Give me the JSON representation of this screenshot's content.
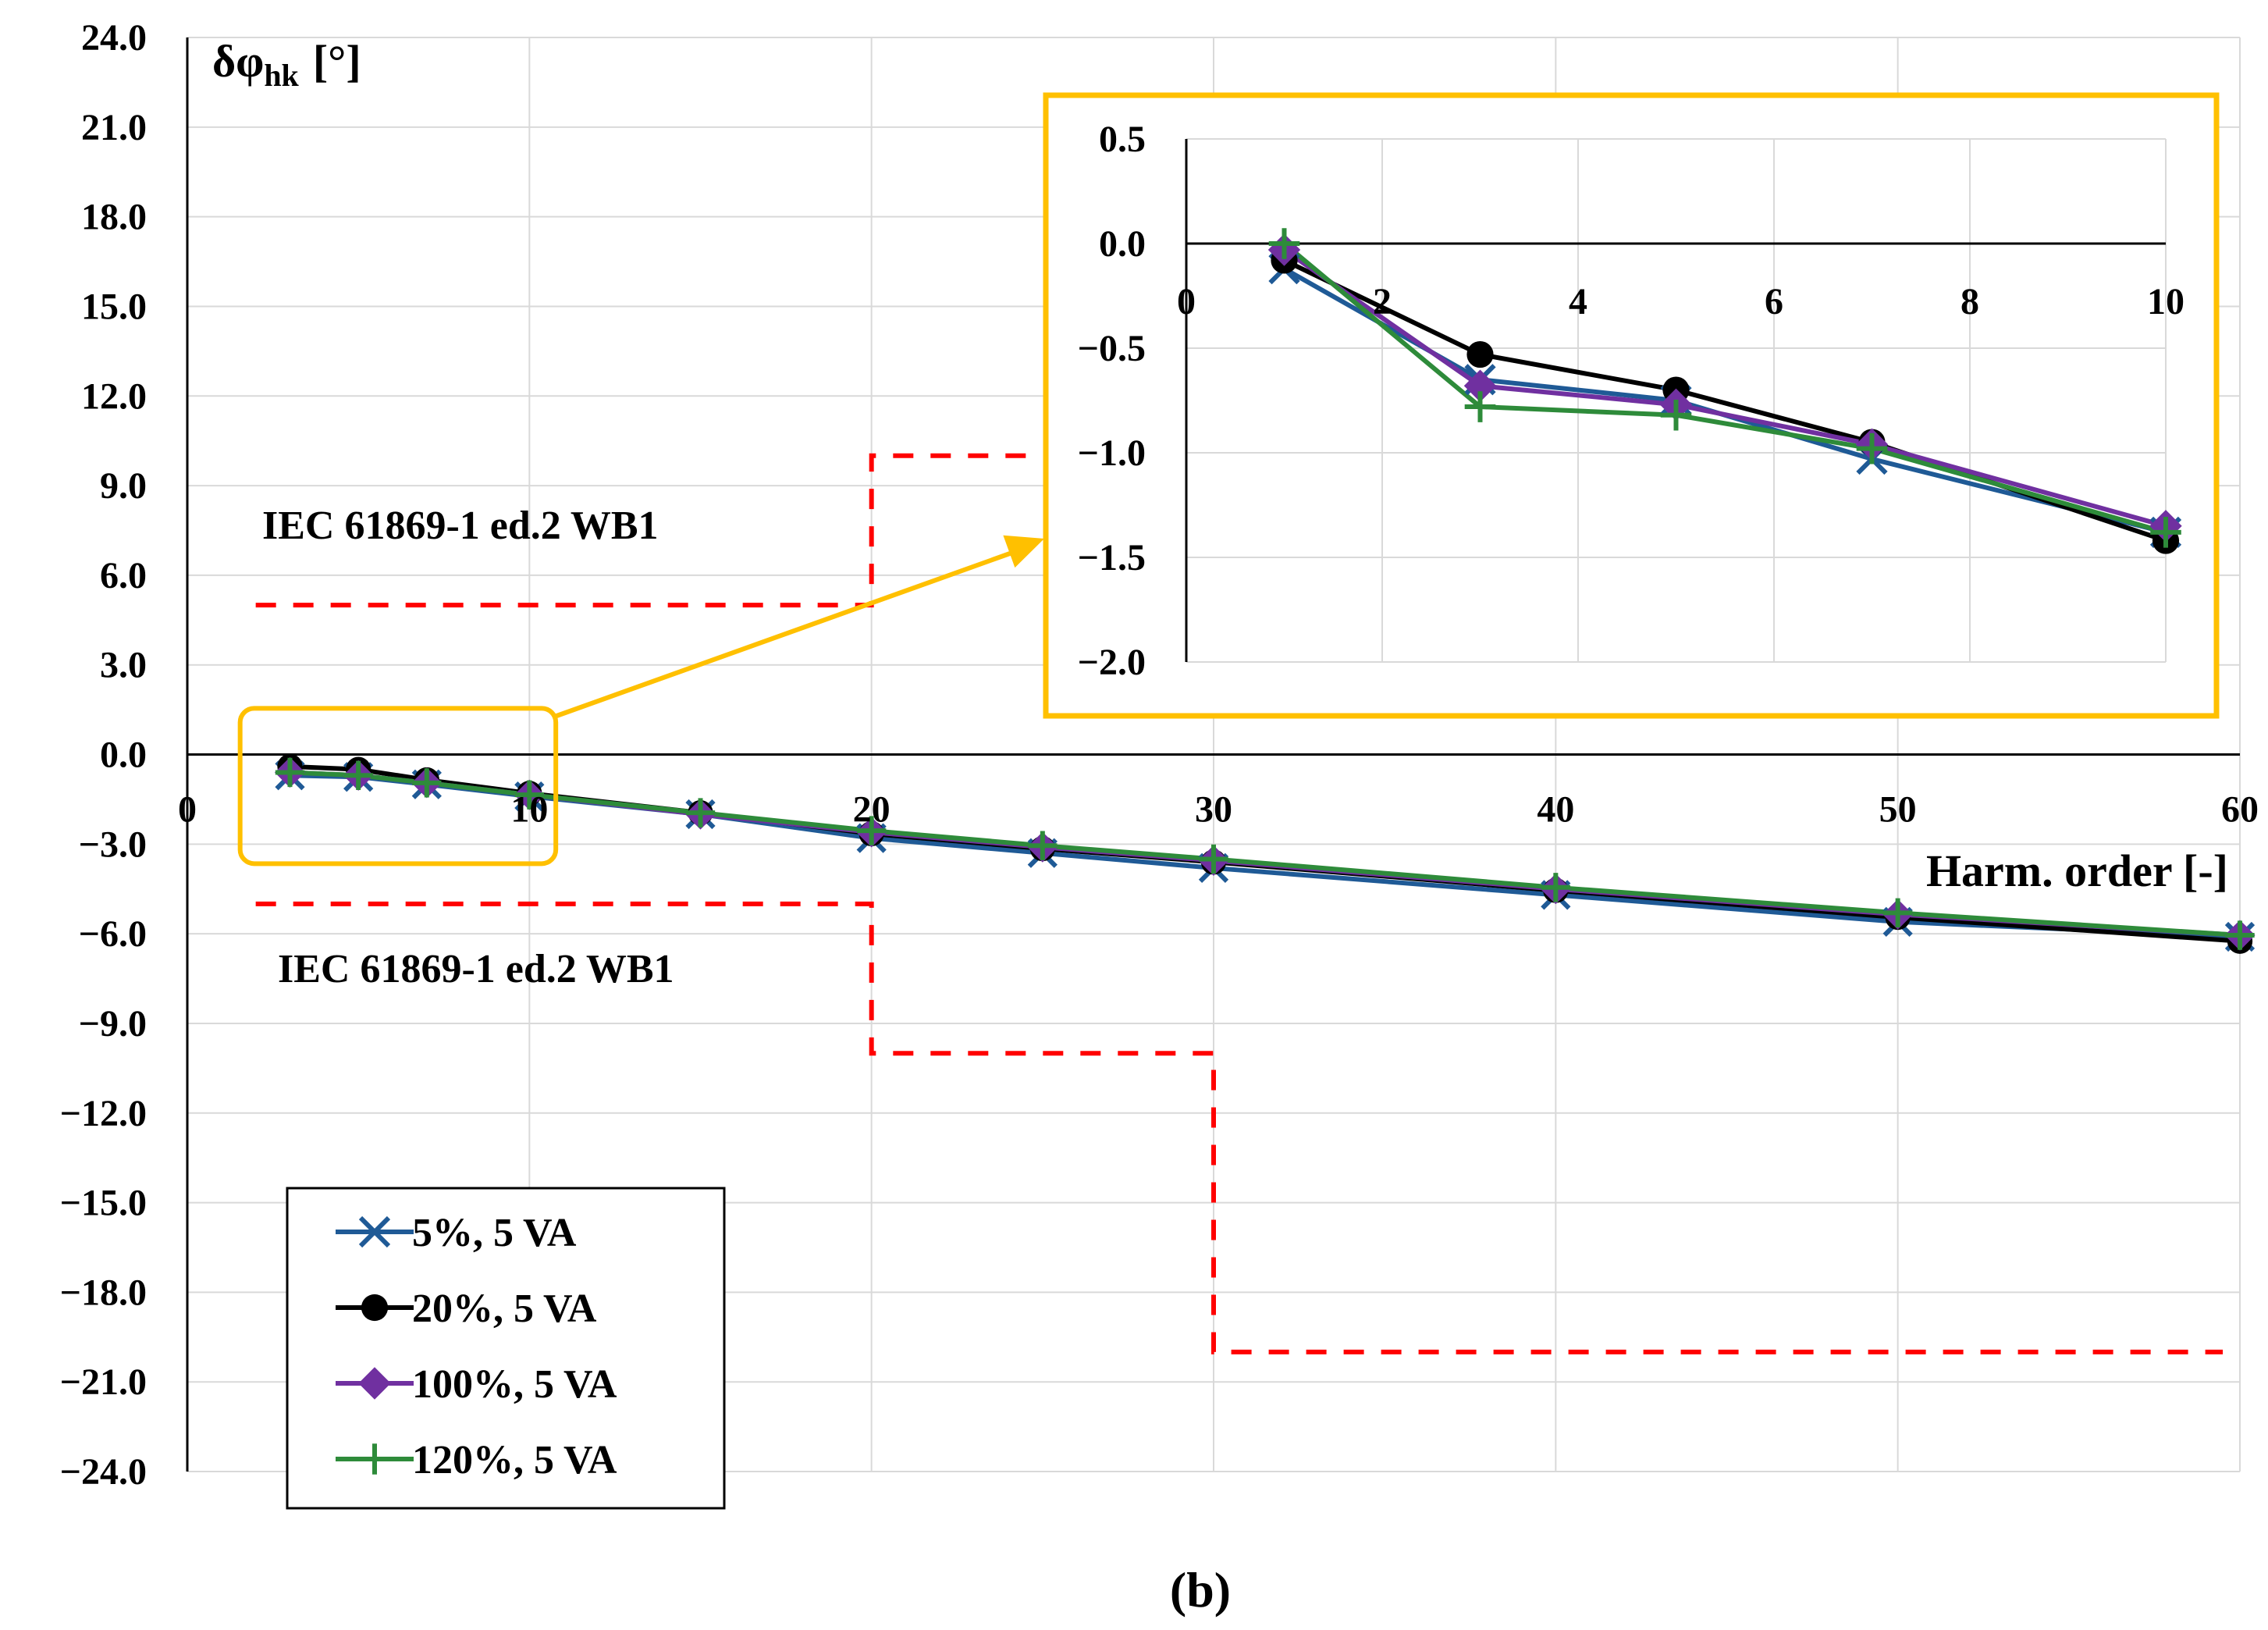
{
  "caption": "(b)",
  "colors": {
    "s5": "#1f5a96",
    "s20": "#000000",
    "s100": "#7030a0",
    "s120": "#2e8b3a",
    "limit": "#ff0000",
    "highlight": "#ffc000",
    "grid": "#d9d9d9"
  },
  "chart_data": [
    {
      "name": "main",
      "type": "line",
      "ylabel_main": "δφ",
      "ylabel_sub": "hk",
      "ylabel_unit": "[°]",
      "xlabel": "Harm. order [-]",
      "xlim": [
        0,
        60
      ],
      "ylim": [
        -24,
        24
      ],
      "xticks": [
        0,
        10,
        20,
        30,
        40,
        50,
        60
      ],
      "xtick_labels": [
        "0",
        "10",
        "20",
        "30",
        "40",
        "50",
        "60"
      ],
      "yticks": [
        24,
        21,
        18,
        15,
        12,
        9,
        6,
        3,
        0,
        -3,
        -6,
        -9,
        -12,
        -15,
        -18,
        -21,
        -24
      ],
      "ytick_labels": [
        "24.0",
        "21.0",
        "18.0",
        "15.0",
        "12.0",
        "9.0",
        "6.0",
        "3.0",
        "0.0",
        "−3.0",
        "−6.0",
        "−9.0",
        "−12.0",
        "−15.0",
        "−18.0",
        "−21.0",
        "−24.0"
      ],
      "x": [
        3,
        5,
        7,
        10,
        15,
        20,
        25,
        30,
        40,
        50,
        60
      ],
      "series": [
        {
          "name": "5%, 5 VA",
          "color_key": "s5",
          "marker": "x",
          "values": [
            -0.7,
            -0.75,
            -1.0,
            -1.4,
            -2.0,
            -2.8,
            -3.3,
            -3.8,
            -4.7,
            -5.6,
            -6.1
          ]
        },
        {
          "name": "20%, 5 VA",
          "color_key": "s20",
          "marker": "circle",
          "values": [
            -0.4,
            -0.5,
            -0.85,
            -1.3,
            -1.95,
            -2.65,
            -3.15,
            -3.6,
            -4.55,
            -5.45,
            -6.25
          ]
        },
        {
          "name": "100%, 5 VA",
          "color_key": "s100",
          "marker": "diamond",
          "values": [
            -0.6,
            -0.7,
            -0.95,
            -1.35,
            -2.0,
            -2.6,
            -3.1,
            -3.55,
            -4.5,
            -5.35,
            -6.05
          ]
        },
        {
          "name": "120%, 5 VA",
          "color_key": "s120",
          "marker": "plus",
          "values": [
            -0.6,
            -0.7,
            -0.95,
            -1.35,
            -1.95,
            -2.55,
            -3.05,
            -3.5,
            -4.45,
            -5.3,
            -6.05
          ]
        }
      ],
      "limits": {
        "label": "IEC 61869-1 ed.2 WB1",
        "upper": [
          [
            2,
            5
          ],
          [
            20,
            5
          ],
          [
            20,
            10
          ],
          [
            25,
            10
          ]
        ],
        "lower": [
          [
            2,
            -5
          ],
          [
            20,
            -5
          ],
          [
            20,
            -10
          ],
          [
            30,
            -10
          ],
          [
            30,
            -20
          ],
          [
            59.5,
            -20
          ]
        ]
      },
      "highlight_box": {
        "x": [
          2,
          11
        ],
        "y": [
          0.5,
          -3.0
        ]
      },
      "legend": {
        "placement": "bottom-left"
      }
    },
    {
      "name": "inset",
      "type": "line",
      "xlim": [
        0,
        10
      ],
      "ylim": [
        -2.0,
        0.5
      ],
      "xticks": [
        0,
        2,
        4,
        6,
        8,
        10
      ],
      "xtick_labels": [
        "0",
        "2",
        "4",
        "6",
        "8",
        "10"
      ],
      "yticks": [
        0.5,
        0.0,
        -0.5,
        -1.0,
        -1.5,
        -2.0
      ],
      "ytick_labels": [
        "0.5",
        "0.0",
        "−0.5",
        "−1.0",
        "−1.5",
        "−2.0"
      ],
      "x": [
        1,
        3,
        5,
        7,
        10
      ],
      "series": [
        {
          "name": "5%, 5 VA",
          "color_key": "s5",
          "marker": "x",
          "values": [
            -0.12,
            -0.65,
            -0.75,
            -1.03,
            -1.38
          ]
        },
        {
          "name": "20%, 5 VA",
          "color_key": "s20",
          "marker": "circle",
          "values": [
            -0.08,
            -0.53,
            -0.7,
            -0.95,
            -1.42
          ]
        },
        {
          "name": "100%, 5 VA",
          "color_key": "s100",
          "marker": "diamond",
          "values": [
            -0.03,
            -0.68,
            -0.77,
            -0.96,
            -1.35
          ]
        },
        {
          "name": "120%, 5 VA",
          "color_key": "s120",
          "marker": "plus",
          "values": [
            0.0,
            -0.78,
            -0.82,
            -0.98,
            -1.38
          ]
        }
      ]
    }
  ]
}
